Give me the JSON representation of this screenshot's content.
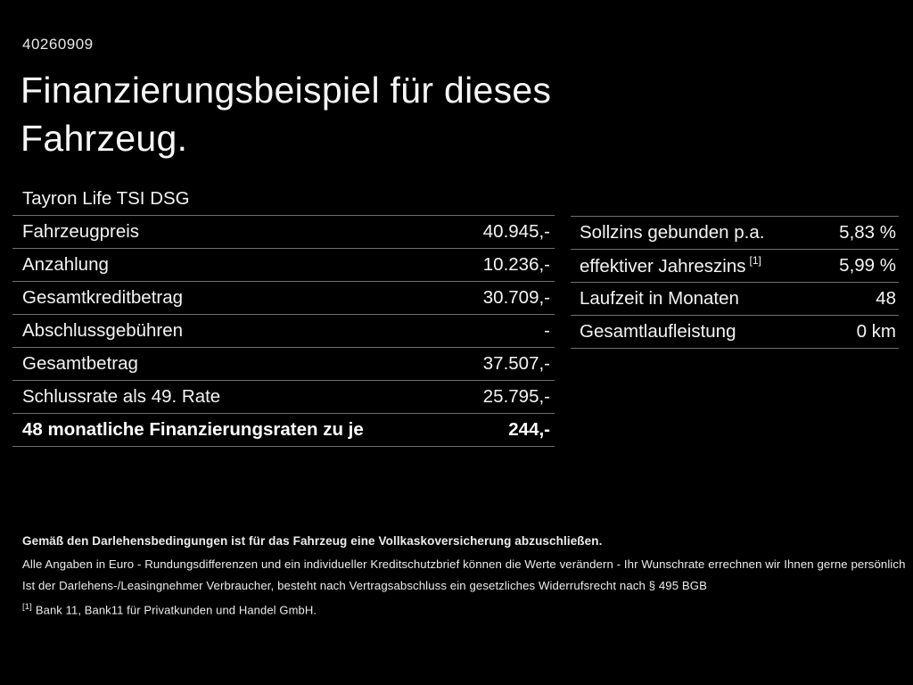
{
  "page": {
    "document_id": "40260909",
    "title_line1": "Finanzierungsbeispiel für dieses",
    "title_line2": "Fahrzeug."
  },
  "vehicle": {
    "model": "Tayron Life TSI DSG"
  },
  "finance_table": {
    "rows": [
      {
        "label": "Fahrzeugpreis",
        "value": "40.945,-"
      },
      {
        "label": "Anzahlung",
        "value": "10.236,-"
      },
      {
        "label": "Gesamtkreditbetrag",
        "value": "30.709,-"
      },
      {
        "label": "Abschlussgebühren",
        "value": "-"
      },
      {
        "label": "Gesamtbetrag",
        "value": "37.507,-"
      },
      {
        "label": "Schlussrate als 49. Rate",
        "value": "25.795,-"
      },
      {
        "label": "48 monatliche Finanzierungsraten zu je",
        "value": "244,-"
      }
    ]
  },
  "conditions_table": {
    "rows": [
      {
        "label": "Sollzins gebunden p.a.",
        "sup": "",
        "value": "5,83 %"
      },
      {
        "label": "effektiver Jahreszins",
        "sup": "[1]",
        "value": "5,99 %"
      },
      {
        "label": "Laufzeit in Monaten",
        "sup": "",
        "value": "48"
      },
      {
        "label": "Gesamtlaufleistung",
        "sup": "",
        "value": "0 km"
      }
    ]
  },
  "footer": {
    "bold_note": "Gemäß den Darlehensbedingungen ist für das Fahrzeug eine Vollkaskoversicherung abzuschließen.",
    "line2": "Alle Angaben in Euro - Rundungsdifferenzen und ein individueller Kreditschutzbrief können die Werte verändern - Ihr Wunschrate errechnen wir Ihnen gerne persönlich",
    "line3": "Ist der Darlehens-/Leasingnehmer Verbraucher, besteht nach Vertragsabschluss ein gesetzliches Widerrufsrecht nach § 495 BGB",
    "footnote_marker": "[1]",
    "footnote_text": "Bank 11, Bank11 für Privatkunden und Handel GmbH."
  },
  "colors": {
    "background": "#000000",
    "text": "#f4f4f4",
    "separator": "#6f6f6f"
  }
}
